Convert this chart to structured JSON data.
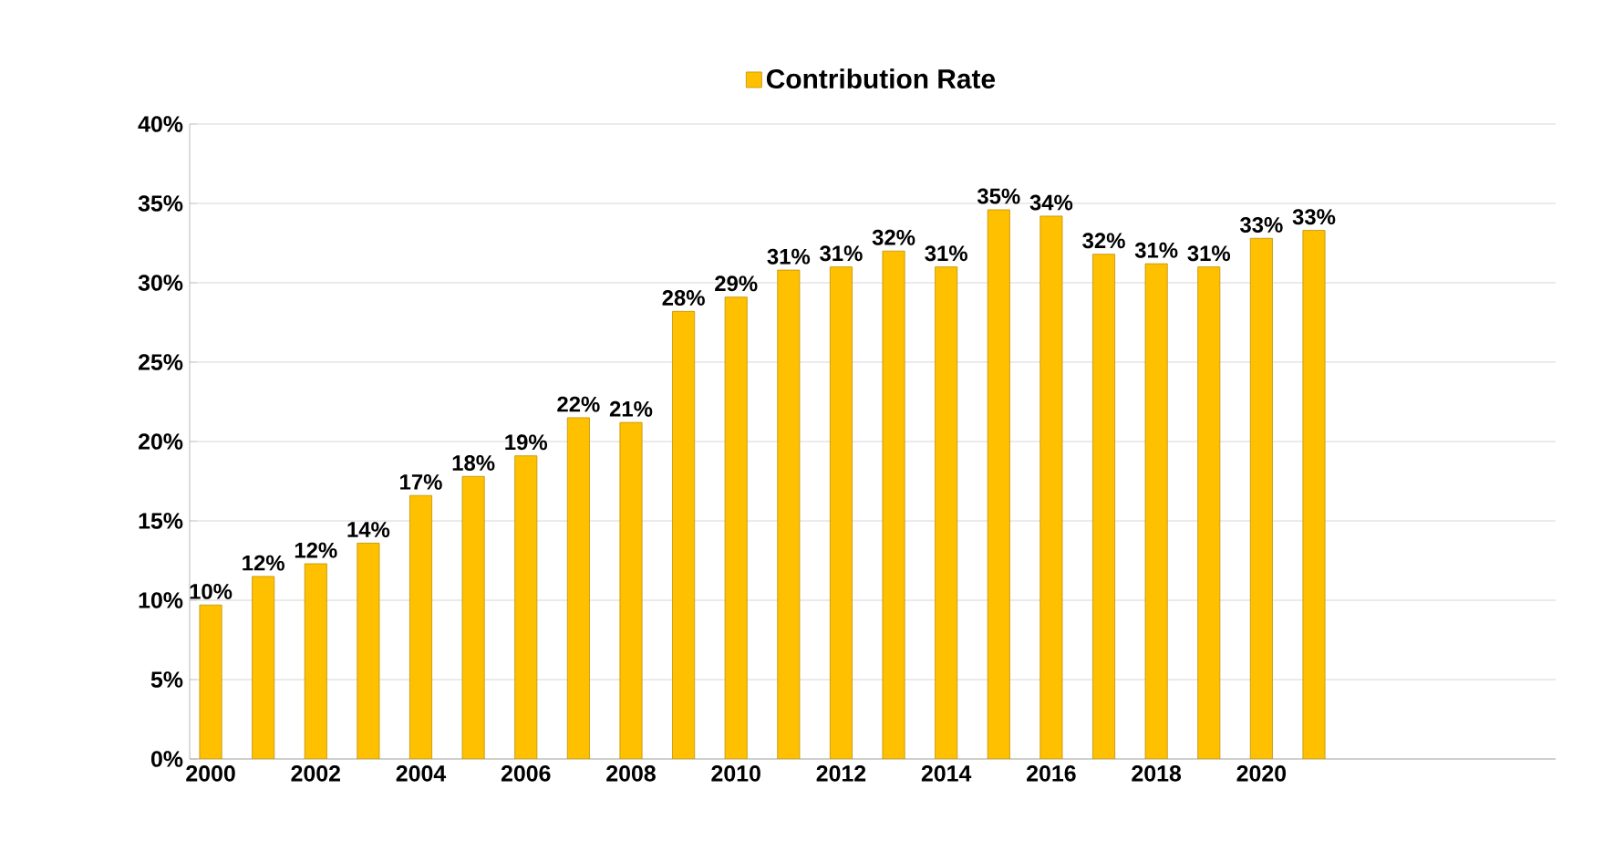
{
  "chart_data": {
    "type": "bar",
    "categories": [
      "2000",
      null,
      "2002",
      null,
      "2004",
      null,
      "2006",
      null,
      "2008",
      null,
      "2010",
      null,
      "2012",
      null,
      "2014",
      null,
      "2016",
      null,
      "2018",
      null,
      "2020",
      null
    ],
    "series": [
      {
        "name": "Contribution Rate",
        "color": "#ffc000",
        "values": [
          9.7,
          11.5,
          12.3,
          13.6,
          16.6,
          17.8,
          19.1,
          21.5,
          21.2,
          28.2,
          29.1,
          30.8,
          31.0,
          32.0,
          31.0,
          34.6,
          34.2,
          31.8,
          31.2,
          31.0,
          32.8,
          33.3
        ],
        "value_labels": [
          "10%",
          "12%",
          "12%",
          "14%",
          "17%",
          "18%",
          "19%",
          "22%",
          "21%",
          "28%",
          "29%",
          "31%",
          "31%",
          "32%",
          "31%",
          "35%",
          "34%",
          "32%",
          "31%",
          "31%",
          "33%",
          "33%"
        ]
      }
    ],
    "ylim": [
      0,
      40
    ],
    "yticks": [
      {
        "value": 0,
        "label": "0%"
      },
      {
        "value": 5,
        "label": "5%"
      },
      {
        "value": 10,
        "label": "10%"
      },
      {
        "value": 15,
        "label": "15%"
      },
      {
        "value": 20,
        "label": "20%"
      },
      {
        "value": 25,
        "label": "25%"
      },
      {
        "value": 30,
        "label": "30%"
      },
      {
        "value": 35,
        "label": "35%"
      },
      {
        "value": 40,
        "label": "40%"
      }
    ],
    "grid": "y",
    "legend": "top"
  }
}
